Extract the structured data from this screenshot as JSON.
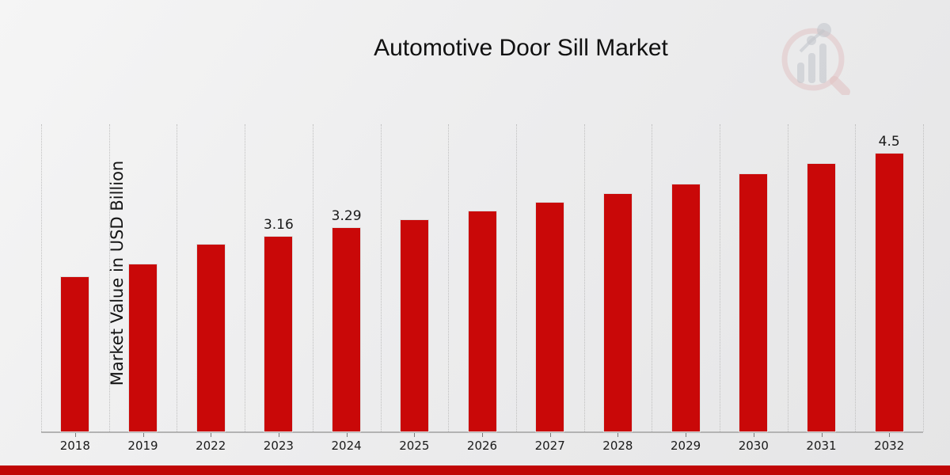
{
  "chart_data": {
    "type": "bar",
    "title": "Automotive Door Sill Market",
    "ylabel": "Market Value in USD Billion",
    "xlabel": "",
    "categories": [
      "2018",
      "2019",
      "2022",
      "2023",
      "2024",
      "2025",
      "2026",
      "2027",
      "2028",
      "2029",
      "2030",
      "2031",
      "2032"
    ],
    "values": [
      2.5,
      2.7,
      3.03,
      3.16,
      3.29,
      3.42,
      3.56,
      3.7,
      3.85,
      4.0,
      4.17,
      4.33,
      4.5
    ],
    "bar_labels": [
      "",
      "",
      "",
      "3.16",
      "3.29",
      "",
      "",
      "",
      "",
      "",
      "",
      "",
      "4.5"
    ],
    "ylim": [
      0,
      5
    ],
    "grid": "vertical-dotted",
    "legend_position": "none",
    "colors": {
      "bar": "#c90808",
      "bar_edge": "#dedede",
      "grid": "#bfbfbf",
      "axis": "#b3b3b3",
      "text": "#1a1a1a",
      "footer_bar": "#c00606",
      "watermark_pink": "#dfb9b9",
      "watermark_gray": "#bcbfc7"
    }
  }
}
